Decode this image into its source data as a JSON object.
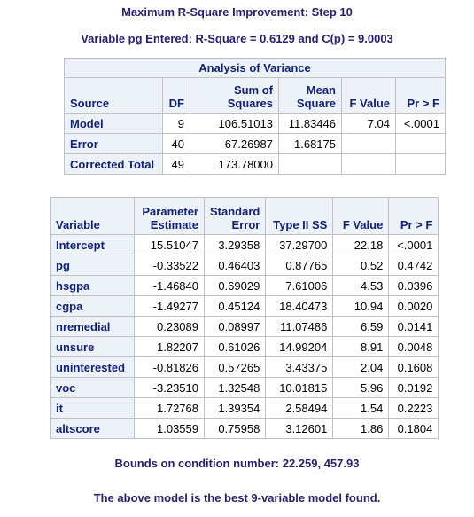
{
  "titles": {
    "step": "Maximum R-Square Improvement: Step 10",
    "entered": "Variable pg Entered: R-Square = 0.6129 and C(p) = 9.0003",
    "bounds": "Bounds on condition number: 22.259, 457.93",
    "best": "The above model is the best 9-variable model found."
  },
  "anova": {
    "caption": "Analysis of Variance",
    "headers": {
      "source": "Source",
      "df": "DF",
      "ss_line1": "Sum of",
      "ss_line2": "Squares",
      "ms_line1": "Mean",
      "ms_line2": "Square",
      "f": "F Value",
      "p": "Pr > F"
    },
    "rows": [
      {
        "source": "Model",
        "df": "9",
        "ss": "106.51013",
        "ms": "11.83446",
        "f": "7.04",
        "p": "<.0001"
      },
      {
        "source": "Error",
        "df": "40",
        "ss": "67.26987",
        "ms": "1.68175",
        "f": "",
        "p": ""
      },
      {
        "source": "Corrected Total",
        "df": "49",
        "ss": "173.78000",
        "ms": "",
        "f": "",
        "p": ""
      }
    ]
  },
  "params": {
    "headers": {
      "variable": "Variable",
      "pe_line1": "Parameter",
      "pe_line2": "Estimate",
      "se_line1": "Standard",
      "se_line2": "Error",
      "ss": "Type II SS",
      "f": "F Value",
      "p": "Pr > F"
    },
    "rows": [
      {
        "variable": "Intercept",
        "estimate": "15.51047",
        "se": "3.29358",
        "ss": "37.29700",
        "f": "22.18",
        "p": "<.0001"
      },
      {
        "variable": "pg",
        "estimate": "-0.33522",
        "se": "0.46403",
        "ss": "0.87765",
        "f": "0.52",
        "p": "0.4742"
      },
      {
        "variable": "hsgpa",
        "estimate": "-1.46840",
        "se": "0.69029",
        "ss": "7.61006",
        "f": "4.53",
        "p": "0.0396"
      },
      {
        "variable": "cgpa",
        "estimate": "-1.49277",
        "se": "0.45124",
        "ss": "18.40473",
        "f": "10.94",
        "p": "0.0020"
      },
      {
        "variable": "nremedial",
        "estimate": "0.23089",
        "se": "0.08997",
        "ss": "11.07486",
        "f": "6.59",
        "p": "0.0141"
      },
      {
        "variable": "unsure",
        "estimate": "1.82207",
        "se": "0.61026",
        "ss": "14.99204",
        "f": "8.91",
        "p": "0.0048"
      },
      {
        "variable": "uninterested",
        "estimate": "-0.81826",
        "se": "0.57265",
        "ss": "3.43375",
        "f": "2.04",
        "p": "0.1608"
      },
      {
        "variable": "voc",
        "estimate": "-3.23510",
        "se": "1.32548",
        "ss": "10.01815",
        "f": "5.96",
        "p": "0.0192"
      },
      {
        "variable": "it",
        "estimate": "1.72768",
        "se": "1.39354",
        "ss": "2.58494",
        "f": "1.54",
        "p": "0.2223"
      },
      {
        "variable": "altscore",
        "estimate": "1.03559",
        "se": "0.75958",
        "ss": "3.12601",
        "f": "1.86",
        "p": "0.1804"
      }
    ]
  },
  "colors": {
    "title_text": "#2a1d6e",
    "header_bg": "#edf2f9",
    "header_text": "#112277",
    "grid_line": "#c1c1c1"
  }
}
